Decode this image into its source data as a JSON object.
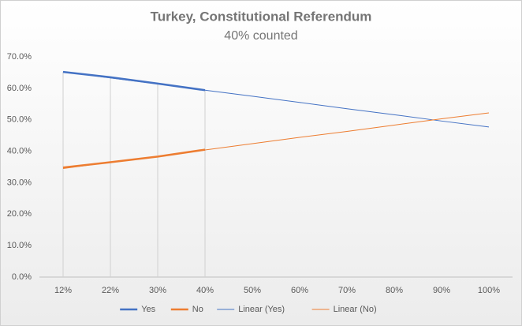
{
  "chart_data": {
    "type": "line",
    "title": "Turkey, Constitutional Referendum",
    "subtitle": "40% counted",
    "categories": [
      "12%",
      "22%",
      "30%",
      "40%",
      "50%",
      "60%",
      "70%",
      "80%",
      "90%",
      "100%"
    ],
    "series": [
      {
        "name": "Yes",
        "color": "#4472c4",
        "values": [
          65.2,
          63.5,
          61.5,
          59.4,
          null,
          null,
          null,
          null,
          null,
          null
        ]
      },
      {
        "name": "No",
        "color": "#ed7d31",
        "values": [
          34.8,
          36.5,
          38.3,
          40.5,
          null,
          null,
          null,
          null,
          null,
          null
        ]
      },
      {
        "name": "Linear (Yes)",
        "color": "#4472c4",
        "values": [
          65.3,
          63.3,
          61.4,
          59.4,
          57.5,
          55.5,
          53.5,
          51.6,
          49.6,
          47.7
        ]
      },
      {
        "name": "Linear (No)",
        "color": "#ed7d31",
        "values": [
          34.5,
          36.5,
          38.4,
          40.4,
          42.4,
          44.4,
          46.3,
          48.3,
          50.3,
          52.2
        ]
      }
    ],
    "ylim": [
      0,
      70
    ],
    "yticks": [
      {
        "value": 0,
        "label": "0.0%"
      },
      {
        "value": 10,
        "label": "10.0%"
      },
      {
        "value": 20,
        "label": "20.0%"
      },
      {
        "value": 30,
        "label": "30.0%"
      },
      {
        "value": 40,
        "label": "40.0%"
      },
      {
        "value": 50,
        "label": "50.0%"
      },
      {
        "value": 60,
        "label": "60.0%"
      },
      {
        "value": 70,
        "label": "70.0%"
      }
    ],
    "drop_lines": true,
    "legend": "bottom"
  }
}
